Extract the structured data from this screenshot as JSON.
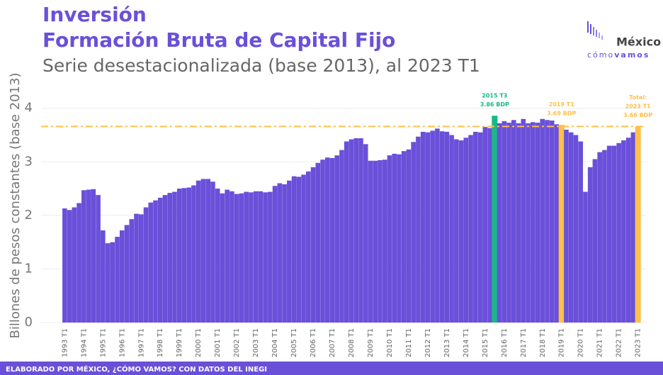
{
  "chart_data": {
    "type": "bar",
    "title": "Inversión",
    "title2": "Formación Bruta de Capital Fijo",
    "subtitle": "Serie desestacionalizada (base 2013), al 2023 T1",
    "ylabel": "Billones de pesos constantes (base 2013)",
    "footer": "ELABORADO POR MÉXICO, ¿CÓMO VAMOS? CON DATOS DEL INEGI",
    "logo": {
      "name": "México",
      "tag1": "cómo",
      "tag2": "vamos"
    },
    "categories": [
      "1993 T1",
      null,
      null,
      null,
      "1994 T1",
      null,
      null,
      null,
      "1995 T1",
      null,
      null,
      null,
      "1996 T1",
      null,
      null,
      null,
      "1997 T1",
      null,
      null,
      null,
      "1998 T1",
      null,
      null,
      null,
      "1999 T1",
      null,
      null,
      null,
      "2000 T1",
      null,
      null,
      null,
      "2001 T1",
      null,
      null,
      null,
      "2002 T1",
      null,
      null,
      null,
      "2003 T1",
      null,
      null,
      null,
      "2004 T1",
      null,
      null,
      null,
      "2005 T1",
      null,
      null,
      null,
      "2006 T1",
      null,
      null,
      null,
      "2007 T1",
      null,
      null,
      null,
      "2008 T1",
      null,
      null,
      null,
      "2009 T1",
      null,
      null,
      null,
      "2010 T1",
      null,
      null,
      null,
      "2011 T1",
      null,
      null,
      null,
      "2012 T1",
      null,
      null,
      null,
      "2013 T1",
      null,
      null,
      null,
      "2014 T1",
      null,
      null,
      null,
      "2015 T1",
      null,
      null,
      null,
      "2016 T1",
      null,
      null,
      null,
      "2017 T1",
      null,
      null,
      null,
      "2018 T1",
      null,
      null,
      null,
      "2019 T1",
      null,
      null,
      null,
      "2020 T1",
      null,
      null,
      null,
      "2021 T1",
      null,
      null,
      null,
      "2022 T1",
      null,
      null,
      null,
      "2023 T1"
    ],
    "values": [
      2.13,
      2.1,
      2.15,
      2.23,
      2.47,
      2.48,
      2.49,
      2.38,
      1.72,
      1.48,
      1.5,
      1.6,
      1.72,
      1.82,
      1.93,
      2.03,
      2.02,
      2.15,
      2.24,
      2.28,
      2.33,
      2.38,
      2.42,
      2.44,
      2.5,
      2.51,
      2.52,
      2.56,
      2.65,
      2.68,
      2.68,
      2.63,
      2.5,
      2.41,
      2.48,
      2.45,
      2.4,
      2.41,
      2.44,
      2.43,
      2.45,
      2.45,
      2.43,
      2.44,
      2.55,
      2.6,
      2.58,
      2.65,
      2.73,
      2.72,
      2.76,
      2.82,
      2.9,
      2.98,
      3.04,
      3.08,
      3.07,
      3.12,
      3.22,
      3.38,
      3.42,
      3.44,
      3.44,
      3.33,
      3.02,
      3.02,
      3.03,
      3.04,
      3.12,
      3.15,
      3.14,
      3.2,
      3.23,
      3.37,
      3.47,
      3.56,
      3.55,
      3.58,
      3.62,
      3.57,
      3.56,
      3.5,
      3.42,
      3.4,
      3.45,
      3.5,
      3.56,
      3.55,
      3.65,
      3.63,
      3.86,
      3.72,
      3.76,
      3.73,
      3.78,
      3.72,
      3.8,
      3.72,
      3.74,
      3.73,
      3.8,
      3.78,
      3.77,
      3.7,
      3.69,
      3.6,
      3.55,
      3.5,
      3.38,
      2.44,
      2.9,
      3.05,
      3.18,
      3.22,
      3.3,
      3.3,
      3.35,
      3.4,
      3.45,
      3.55,
      3.66
    ],
    "color": "#6a50d9",
    "highlight_colors": {
      "90": "#19b886",
      "104": "#ffc04a",
      "120": "#ffc04a"
    },
    "annotations": [
      [
        "2015 T3",
        "3.86 BDP"
      ],
      [
        "2019 T1",
        "3.69 BDP"
      ],
      [
        "Total:",
        "2023 T1",
        "3.66 BDP"
      ]
    ],
    "reference_line": {
      "value": 3.66,
      "color": "#ffc04a"
    },
    "ylim": [
      0,
      4.3
    ],
    "yticks": [
      0,
      1,
      2,
      3,
      4
    ],
    "grid": true
  }
}
